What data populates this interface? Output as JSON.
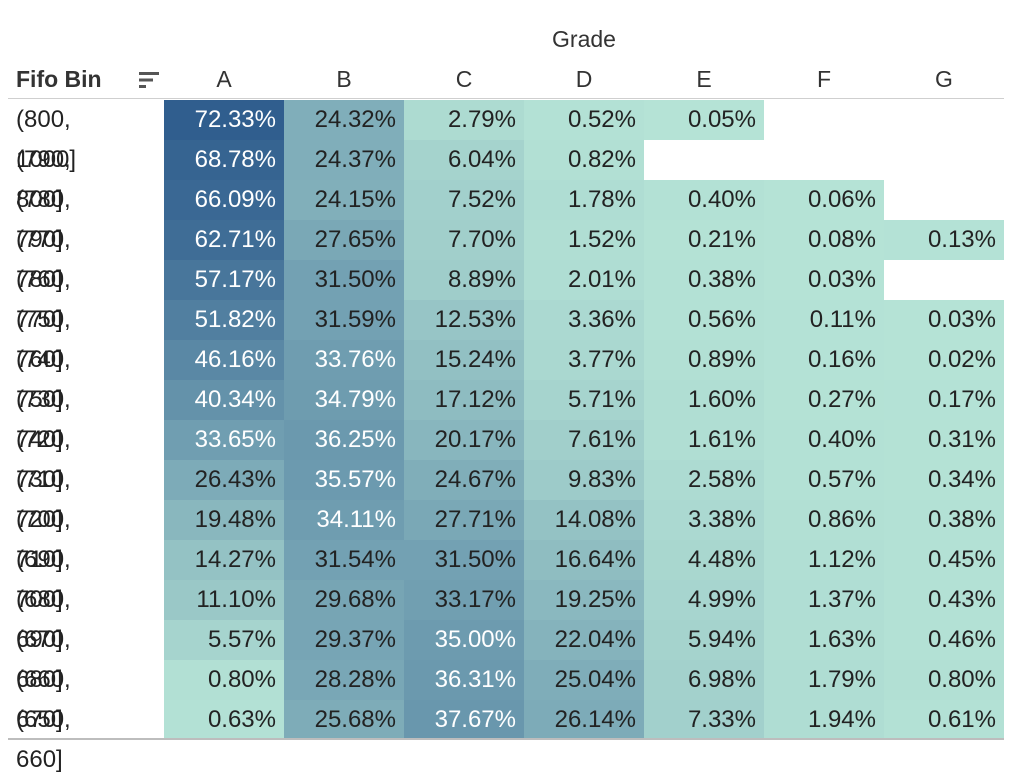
{
  "header": {
    "column_group_title": "Grade",
    "row_field_title": "Fifo Bin"
  },
  "icons": {
    "sort": "sort-descending-icon"
  },
  "chart_data": {
    "type": "heatmap",
    "title": "",
    "column_title": "Grade",
    "row_title": "Fifo Bin",
    "columns": [
      "A",
      "B",
      "C",
      "D",
      "E",
      "F",
      "G"
    ],
    "rows": [
      "(800, 1000]",
      "(790, 800]",
      "(780, 790]",
      "(770, 780]",
      "(760, 770]",
      "(750, 760]",
      "(740, 750]",
      "(730, 740]",
      "(720, 730]",
      "(710, 720]",
      "(700, 710]",
      "(690, 700]",
      "(680, 690]",
      "(670, 680]",
      "(660, 670]",
      "(650, 660]"
    ],
    "values": [
      [
        72.33,
        24.32,
        2.79,
        0.52,
        0.05,
        null,
        null
      ],
      [
        68.78,
        24.37,
        6.04,
        0.82,
        null,
        null,
        null
      ],
      [
        66.09,
        24.15,
        7.52,
        1.78,
        0.4,
        0.06,
        null
      ],
      [
        62.71,
        27.65,
        7.7,
        1.52,
        0.21,
        0.08,
        0.13
      ],
      [
        57.17,
        31.5,
        8.89,
        2.01,
        0.38,
        0.03,
        null
      ],
      [
        51.82,
        31.59,
        12.53,
        3.36,
        0.56,
        0.11,
        0.03
      ],
      [
        46.16,
        33.76,
        15.24,
        3.77,
        0.89,
        0.16,
        0.02
      ],
      [
        40.34,
        34.79,
        17.12,
        5.71,
        1.6,
        0.27,
        0.17
      ],
      [
        33.65,
        36.25,
        20.17,
        7.61,
        1.61,
        0.4,
        0.31
      ],
      [
        26.43,
        35.57,
        24.67,
        9.83,
        2.58,
        0.57,
        0.34
      ],
      [
        19.48,
        34.11,
        27.71,
        14.08,
        3.38,
        0.86,
        0.38
      ],
      [
        14.27,
        31.54,
        31.5,
        16.64,
        4.48,
        1.12,
        0.45
      ],
      [
        11.1,
        29.68,
        33.17,
        19.25,
        4.99,
        1.37,
        0.43
      ],
      [
        5.57,
        29.37,
        35.0,
        22.04,
        5.94,
        1.63,
        0.46
      ],
      [
        0.8,
        28.28,
        36.31,
        25.04,
        6.98,
        1.79,
        0.8
      ],
      [
        0.63,
        25.68,
        37.67,
        26.14,
        7.33,
        1.94,
        0.61
      ]
    ],
    "value_format": "percent, 2 decimals",
    "color_scale": {
      "low": "#b5e3d6",
      "high": "#2c5a8c",
      "domain": [
        0,
        75
      ]
    }
  }
}
